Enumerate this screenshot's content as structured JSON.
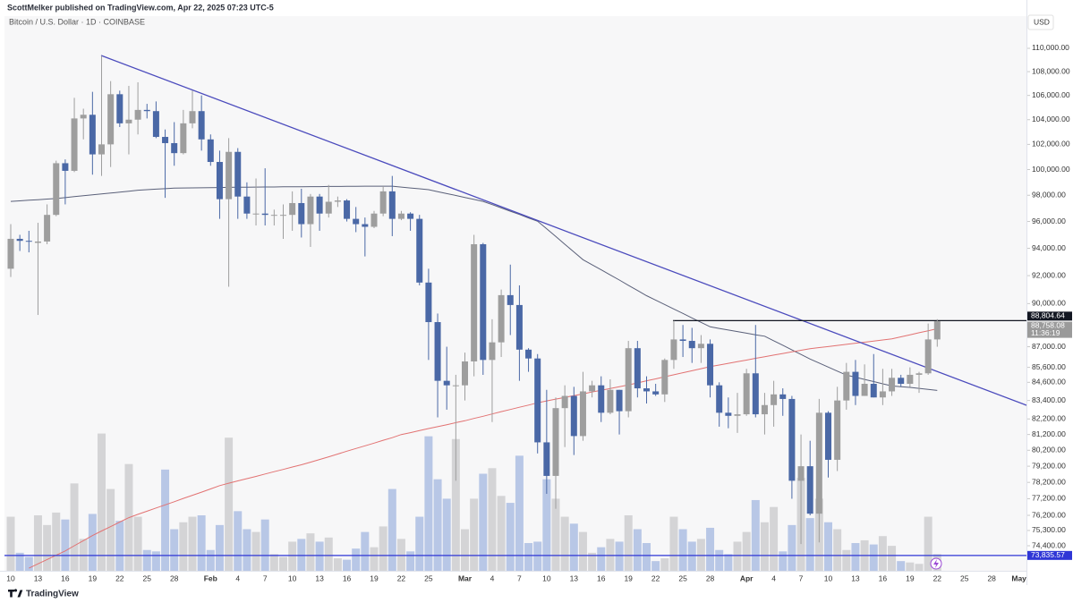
{
  "header": {
    "publisher": "ScottMelker published on TradingView.com, Apr 22, 2025 07:23 UTC-5",
    "symbol": "Bitcoin / U.S. Dollar · 1D · COINBASE",
    "currency": "USD"
  },
  "footer": "TradingView",
  "chart_data": {
    "type": "candlestick",
    "log_scale": true,
    "grid": false,
    "up_color": "#9e9e9e",
    "down_color": "#4a68a6",
    "volume_up_color": "#d4d4d6",
    "volume_down_color": "#b8c7e6",
    "ylim": [
      72950,
      112820
    ],
    "yticks": [
      {
        "value": 110000,
        "label": "110,000.00"
      },
      {
        "value": 108000,
        "label": "108,000.00"
      },
      {
        "value": 106000,
        "label": "106,000.00"
      },
      {
        "value": 104000,
        "label": "104,000.00"
      },
      {
        "value": 102000,
        "label": "102,000.00"
      },
      {
        "value": 100000,
        "label": "100,000.00"
      },
      {
        "value": 98000,
        "label": "98,000.00"
      },
      {
        "value": 96000,
        "label": "96,000.00"
      },
      {
        "value": 94000,
        "label": "94,000.00"
      },
      {
        "value": 92000,
        "label": "92,000.00"
      },
      {
        "value": 90000,
        "label": "90,000.00"
      },
      {
        "value": 87000,
        "label": "87,000.00"
      },
      {
        "value": 85600,
        "label": "85,600.00"
      },
      {
        "value": 84600,
        "label": "84,600.00"
      },
      {
        "value": 83400,
        "label": "83,400.00"
      },
      {
        "value": 82200,
        "label": "82,200.00"
      },
      {
        "value": 81200,
        "label": "81,200.00"
      },
      {
        "value": 80200,
        "label": "80,200.00"
      },
      {
        "value": 79200,
        "label": "79,200.00"
      },
      {
        "value": 78200,
        "label": "78,200.00"
      },
      {
        "value": 77200,
        "label": "77,200.00"
      },
      {
        "value": 76200,
        "label": "76,200.00"
      },
      {
        "value": 75300,
        "label": "75,300.00"
      },
      {
        "value": 74400,
        "label": "74,400.00"
      }
    ],
    "categories": [
      "10",
      null,
      null,
      "13",
      null,
      null,
      "16",
      null,
      null,
      "19",
      null,
      null,
      "22",
      null,
      null,
      "25",
      null,
      null,
      "28",
      null,
      null,
      null,
      "Feb",
      null,
      null,
      "4",
      null,
      null,
      "7",
      null,
      null,
      "10",
      null,
      null,
      "13",
      null,
      null,
      "16",
      null,
      null,
      "19",
      null,
      null,
      "22",
      null,
      null,
      "25",
      null,
      null,
      null,
      "Mar",
      null,
      null,
      "4",
      null,
      null,
      "7",
      null,
      null,
      "10",
      null,
      null,
      "13",
      null,
      null,
      "16",
      null,
      null,
      "19",
      null,
      null,
      "22",
      null,
      null,
      "25",
      null,
      null,
      "28",
      null,
      null,
      null,
      "Apr",
      null,
      null,
      "4",
      null,
      null,
      "7",
      null,
      null,
      "10",
      null,
      null,
      "13",
      null,
      null,
      "16",
      null,
      null,
      "19",
      null,
      null,
      "22",
      null,
      null,
      "25",
      null,
      null,
      "28",
      null,
      null,
      "May"
    ],
    "open": [
      92500,
      94700,
      94550,
      94400,
      94500,
      96500,
      100500,
      99900,
      104100,
      104400,
      101200,
      102000,
      106100,
      103700,
      104000,
      104800,
      104700,
      102600,
      102100,
      101300,
      103700,
      104700,
      102400,
      100600,
      97700,
      101400,
      97900,
      96600,
      96600,
      96500,
      96500,
      96500,
      97400,
      95800,
      97900,
      96600,
      97500,
      97600,
      96200,
      95800,
      95600,
      96600,
      98300,
      96200,
      96600,
      96200,
      91500,
      88700,
      84700,
      84400,
      84400,
      86000,
      94300,
      86100,
      87300,
      90600,
      89900,
      86800,
      86200,
      80700,
      78600,
      82900,
      83700,
      81100,
      84000,
      84400,
      82600,
      84100,
      82700,
      86900,
      84200,
      84000,
      83800,
      86100,
      87500,
      87400,
      86900,
      87200,
      84400,
      82600,
      82400,
      82500,
      85200,
      82500,
      83100,
      83800,
      83500,
      78300,
      79200,
      76300,
      82600,
      79600,
      83400,
      85300,
      83700,
      84500,
      83600,
      84000,
      84900,
      84500,
      85100,
      85200,
      87500,
      null,
      null,
      null,
      null,
      null,
      null,
      null,
      null,
      null
    ],
    "high": [
      95800,
      95000,
      95300,
      95900,
      97300,
      100700,
      100800,
      105800,
      104900,
      106300,
      109350,
      107200,
      106400,
      106800,
      107100,
      105300,
      105500,
      103200,
      103800,
      104800,
      106400,
      106000,
      102800,
      101500,
      102500,
      101700,
      99000,
      99300,
      100100,
      96900,
      97300,
      98300,
      98500,
      98100,
      98100,
      98800,
      97900,
      97700,
      97100,
      96300,
      96800,
      98700,
      99500,
      96800,
      96700,
      96500,
      92500,
      89300,
      87000,
      85100,
      86600,
      95000,
      94400,
      88900,
      91000,
      92800,
      91300,
      86900,
      86500,
      84100,
      83600,
      84400,
      84300,
      85300,
      84700,
      85000,
      84800,
      84100,
      87400,
      87400,
      85000,
      84500,
      86200,
      88800,
      88500,
      88300,
      87800,
      87500,
      84600,
      83600,
      83900,
      85500,
      88500,
      83900,
      84700,
      84200,
      83700,
      81200,
      80800,
      83500,
      82700,
      84300,
      85900,
      86100,
      85800,
      86500,
      85500,
      85500,
      85100,
      85600,
      85300,
      88600,
      88900,
      null,
      null,
      null,
      null,
      null,
      null,
      null,
      null,
      null
    ],
    "low": [
      91900,
      93800,
      93700,
      89200,
      94300,
      96400,
      97300,
      99800,
      102400,
      99600,
      99500,
      100200,
      103400,
      101200,
      102800,
      104100,
      102500,
      97800,
      100300,
      101200,
      103300,
      101500,
      100300,
      96200,
      91200,
      96200,
      96200,
      95700,
      95700,
      95700,
      94700,
      95300,
      94800,
      94100,
      95300,
      96300,
      97100,
      96000,
      95200,
      93400,
      95500,
      96400,
      94900,
      96100,
      95300,
      91300,
      86100,
      82300,
      82800,
      78300,
      83400,
      85000,
      85100,
      82000,
      86300,
      87800,
      84700,
      85300,
      80000,
      77500,
      76600,
      80400,
      79900,
      80800,
      83600,
      82000,
      82500,
      81200,
      82300,
      83600,
      83200,
      83700,
      83300,
      85500,
      86300,
      85900,
      85900,
      83600,
      81700,
      81600,
      81300,
      82400,
      82300,
      81200,
      81700,
      82400,
      77200,
      74500,
      76200,
      74600,
      78500,
      78900,
      82800,
      83100,
      83700,
      83600,
      83100,
      83700,
      84300,
      84300,
      83900,
      85100,
      87000,
      null,
      null,
      null,
      null,
      null,
      null,
      null,
      null,
      null
    ],
    "close": [
      94700,
      94550,
      94500,
      94500,
      96500,
      100500,
      99900,
      104100,
      104400,
      101200,
      102000,
      106100,
      103700,
      104000,
      104800,
      104700,
      102600,
      102100,
      101300,
      103700,
      104700,
      102400,
      100600,
      97700,
      101400,
      97900,
      96600,
      96600,
      96500,
      96500,
      96500,
      97400,
      95800,
      97900,
      96600,
      97500,
      97600,
      96200,
      95800,
      95600,
      96600,
      98300,
      96200,
      96600,
      96200,
      91500,
      88700,
      84700,
      84400,
      84400,
      86000,
      94300,
      86100,
      87300,
      90600,
      89900,
      86800,
      86200,
      80700,
      78600,
      82900,
      83700,
      81100,
      84000,
      84400,
      82600,
      84100,
      82700,
      86900,
      84200,
      84000,
      83800,
      86100,
      87500,
      87400,
      86900,
      87200,
      84400,
      82600,
      82400,
      82500,
      85200,
      82500,
      83100,
      83800,
      83500,
      78300,
      79200,
      76300,
      82600,
      79600,
      83400,
      85300,
      83700,
      84500,
      83600,
      84000,
      84900,
      84500,
      85100,
      85200,
      87500,
      88758.08,
      null,
      null,
      null,
      null,
      null,
      null,
      null,
      null,
      null
    ],
    "volume": [
      39,
      13,
      10,
      40,
      33,
      42,
      37,
      63,
      23,
      41,
      99,
      59,
      36,
      77,
      39,
      15,
      14,
      73,
      30,
      35,
      39,
      40,
      15,
      33,
      96,
      43,
      30,
      28,
      37,
      12,
      10,
      21,
      23,
      27,
      21,
      24,
      9,
      8,
      16,
      28,
      17,
      32,
      59,
      23,
      14,
      39,
      97,
      66,
      52,
      95,
      30,
      52,
      70,
      74,
      54,
      49,
      83,
      20,
      21,
      66,
      52,
      39,
      34,
      28,
      13,
      17,
      23,
      21,
      40,
      30,
      20,
      7,
      9,
      39,
      30,
      21,
      23,
      31,
      15,
      12,
      21,
      28,
      51,
      35,
      46,
      14,
      33,
      67,
      38,
      52,
      35,
      30,
      15,
      20,
      22,
      19,
      25,
      18,
      7,
      6,
      5,
      39,
      12,
      null,
      null,
      null,
      null,
      null,
      null,
      null,
      null,
      null
    ],
    "volume_lim": [
      0,
      400
    ],
    "ma_lines": [
      {
        "color": "#5a6079",
        "values": [
          97530,
          97570,
          97620,
          97660,
          97710,
          97750,
          97820,
          97890,
          97960,
          98030,
          98100,
          98170,
          98240,
          98310,
          98390,
          98430,
          98470,
          98510,
          98550,
          98560,
          98570,
          98580,
          98590,
          98600,
          98610,
          98620,
          98620,
          98630,
          98640,
          98640,
          98650,
          98660,
          98660,
          98670,
          98670,
          98680,
          98680,
          98690,
          98690,
          98700,
          98700,
          98700,
          98700,
          98630,
          98560,
          98500,
          98430,
          98280,
          98130,
          97980,
          97830,
          97680,
          97530,
          97280,
          97030,
          96780,
          96530,
          96270,
          96020,
          95450,
          94880,
          94300,
          93730,
          93160,
          92790,
          92420,
          92050,
          91680,
          91300,
          90930,
          90560,
          90250,
          89930,
          89620,
          89310,
          88990,
          88680,
          88370,
          88260,
          88150,
          88040,
          87930,
          87820,
          87720,
          87410,
          87100,
          86780,
          86470,
          86160,
          85890,
          85620,
          85350,
          85080,
          84940,
          84790,
          84650,
          84500,
          84360,
          84310,
          84260,
          84200,
          84130,
          84060,
          null,
          null,
          null,
          null,
          null,
          null,
          null,
          null,
          null
        ]
      },
      {
        "color": "#e27272",
        "values": [
          null,
          null,
          73100,
          73350,
          73600,
          73850,
          74100,
          74400,
          74700,
          75000,
          75270,
          75530,
          75800,
          76060,
          76260,
          76450,
          76640,
          76830,
          77020,
          77220,
          77410,
          77600,
          77800,
          78000,
          78150,
          78290,
          78430,
          78570,
          78720,
          78860,
          79000,
          79150,
          79290,
          79450,
          79620,
          79790,
          79960,
          80140,
          80310,
          80480,
          80650,
          80830,
          81000,
          81200,
          81320,
          81450,
          81580,
          81700,
          81830,
          81960,
          82080,
          82230,
          82370,
          82520,
          82670,
          82810,
          82960,
          83100,
          83250,
          83370,
          83490,
          83600,
          83720,
          83840,
          83960,
          84070,
          84190,
          84310,
          84430,
          84560,
          84700,
          84830,
          84970,
          85100,
          85240,
          85370,
          85510,
          85650,
          85760,
          85870,
          85980,
          86090,
          86210,
          86320,
          86430,
          86540,
          86650,
          86760,
          86860,
          86940,
          87010,
          87090,
          87160,
          87240,
          87310,
          87390,
          87460,
          87540,
          87680,
          87820,
          87960,
          88100,
          88240,
          null,
          null,
          null,
          null,
          null,
          null,
          null,
          null,
          null
        ]
      }
    ],
    "price_lines": [
      {
        "value": 88804.64,
        "label": "88,804.64",
        "color": "#131722"
      },
      {
        "value": 73835.57,
        "label": "73,835.57",
        "color": "#2f36d6"
      }
    ],
    "last_price": {
      "value": 88758.08,
      "label": "88,758.08",
      "countdown": "11:36:19",
      "color": "#9a9a9a"
    }
  }
}
